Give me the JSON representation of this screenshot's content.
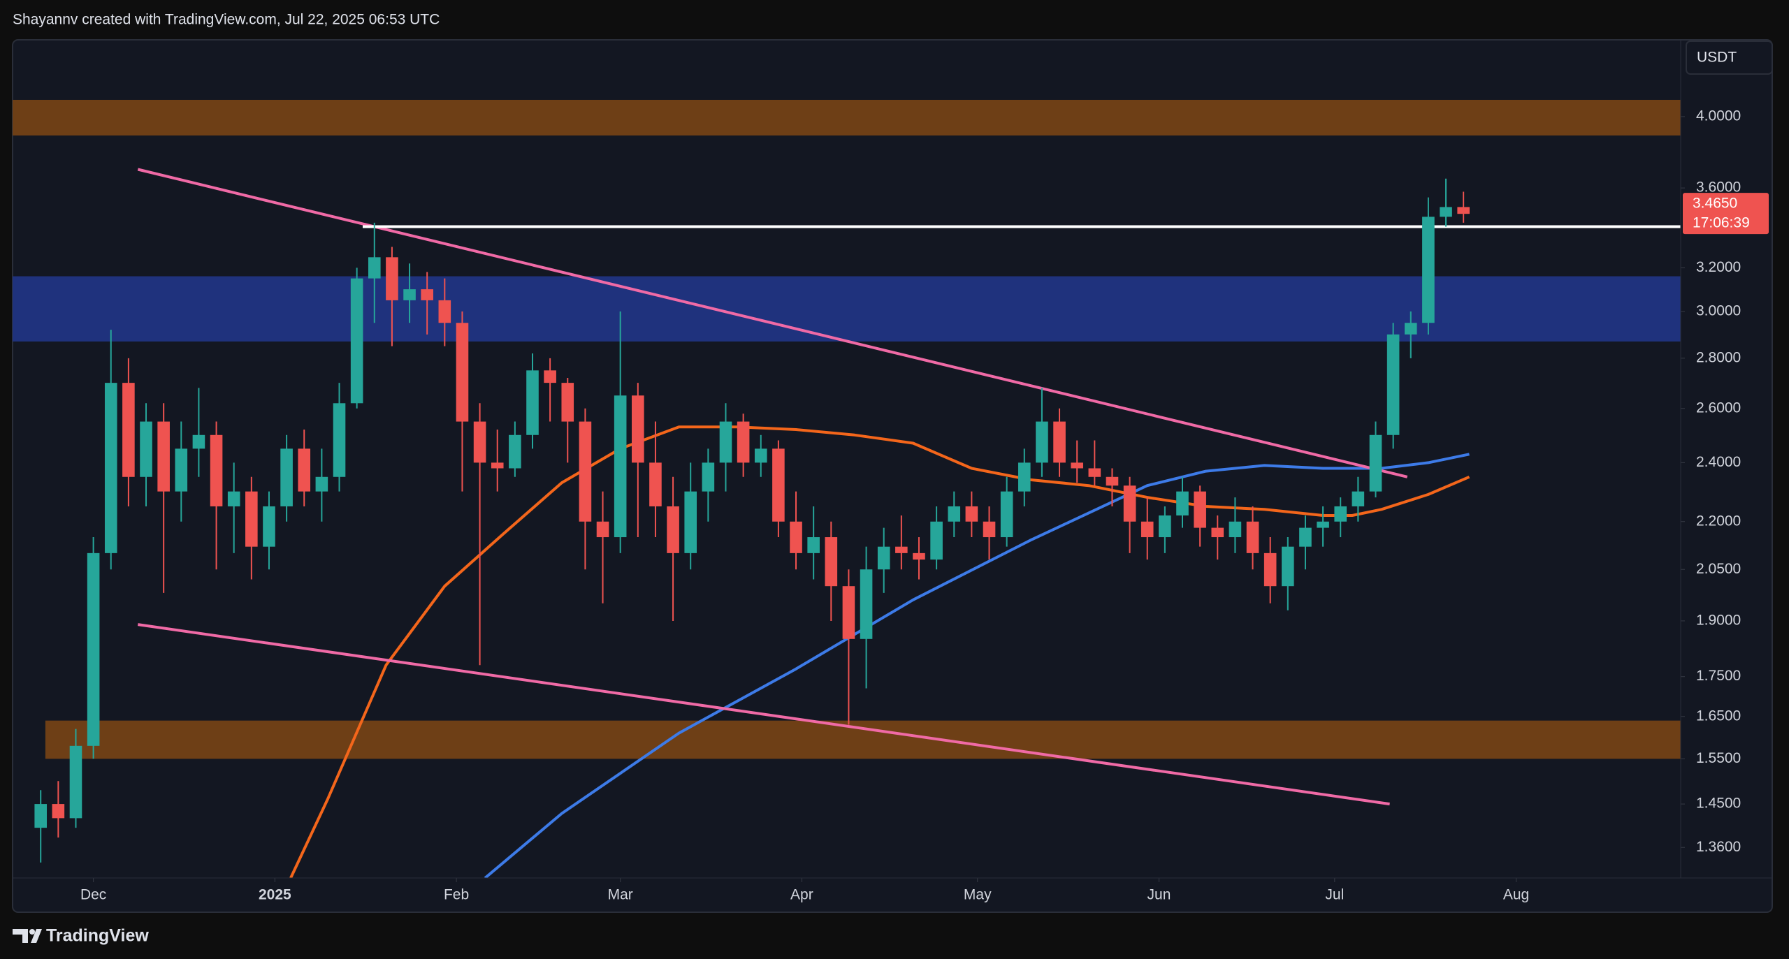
{
  "header": "Shayannv created with TradingView.com, Jul 22, 2025 06:53 UTC",
  "currency": "USDT",
  "brand": "TradingView",
  "chart_data": {
    "type": "candlestick",
    "log_scale": true,
    "up_color": "#26a69a",
    "down_color": "#ef5350",
    "xlim": [
      -13.8,
      271.1
    ],
    "ylim": [
      1.3,
      4.48
    ],
    "xticks": [
      {
        "value": 0,
        "label": "Dec"
      },
      {
        "value": 31,
        "label": "2025",
        "bold": true
      },
      {
        "value": 62,
        "label": "Feb"
      },
      {
        "value": 90,
        "label": "Mar"
      },
      {
        "value": 121,
        "label": "Apr"
      },
      {
        "value": 151,
        "label": "May"
      },
      {
        "value": 182,
        "label": "Jun"
      },
      {
        "value": 212,
        "label": "Jul"
      },
      {
        "value": 243,
        "label": "Aug"
      }
    ],
    "yticks": [
      {
        "value": 4.0,
        "label": "4.0000"
      },
      {
        "value": 3.6,
        "label": "3.6000"
      },
      {
        "value": 3.2,
        "label": "3.2000"
      },
      {
        "value": 3.0,
        "label": "3.0000"
      },
      {
        "value": 2.8,
        "label": "2.8000"
      },
      {
        "value": 2.6,
        "label": "2.6000"
      },
      {
        "value": 2.4,
        "label": "2.4000"
      },
      {
        "value": 2.2,
        "label": "2.2000"
      },
      {
        "value": 2.05,
        "label": "2.0500"
      },
      {
        "value": 1.9,
        "label": "1.9000"
      },
      {
        "value": 1.75,
        "label": "1.7500"
      },
      {
        "value": 1.65,
        "label": "1.6500"
      },
      {
        "value": 1.55,
        "label": "1.5500"
      },
      {
        "value": 1.45,
        "label": "1.4500"
      },
      {
        "value": 1.36,
        "label": "1.3600"
      }
    ],
    "x": [
      -9,
      -6,
      -3,
      0,
      3,
      6,
      9,
      12,
      15,
      18,
      21,
      24,
      27,
      30,
      33,
      36,
      39,
      42,
      45,
      48,
      51,
      54,
      57,
      60,
      63,
      66,
      69,
      72,
      75,
      78,
      81,
      84,
      87,
      90,
      93,
      96,
      99,
      102,
      105,
      108,
      111,
      114,
      117,
      120,
      123,
      126,
      129,
      132,
      135,
      138,
      141,
      144,
      147,
      150,
      153,
      156,
      159,
      162,
      165,
      168,
      171,
      174,
      177,
      180,
      183,
      186,
      189,
      192,
      195,
      198,
      201,
      204,
      207,
      210,
      213,
      216,
      219,
      222,
      225,
      228,
      231,
      234
    ],
    "open": [
      1.4,
      1.45,
      1.42,
      1.58,
      2.1,
      2.7,
      2.35,
      2.55,
      2.3,
      2.45,
      2.5,
      2.25,
      2.3,
      2.12,
      2.25,
      2.45,
      2.3,
      2.35,
      2.62,
      3.15,
      3.25,
      3.05,
      3.1,
      3.05,
      2.95,
      2.55,
      2.4,
      2.38,
      2.5,
      2.75,
      2.7,
      2.55,
      2.2,
      2.15,
      2.65,
      2.4,
      2.25,
      2.1,
      2.3,
      2.4,
      2.55,
      2.4,
      2.45,
      2.2,
      2.1,
      2.15,
      2.0,
      1.85,
      2.05,
      2.12,
      2.1,
      2.08,
      2.2,
      2.25,
      2.2,
      2.15,
      2.3,
      2.4,
      2.55,
      2.4,
      2.38,
      2.35,
      2.32,
      2.2,
      2.15,
      2.22,
      2.3,
      2.18,
      2.15,
      2.2,
      2.1,
      2.0,
      2.12,
      2.18,
      2.2,
      2.25,
      2.3,
      2.5,
      2.9,
      2.95,
      3.45,
      3.5
    ],
    "high": [
      1.48,
      1.5,
      1.62,
      2.15,
      2.92,
      2.8,
      2.62,
      2.62,
      2.55,
      2.68,
      2.55,
      2.4,
      2.35,
      2.3,
      2.5,
      2.52,
      2.45,
      2.7,
      3.2,
      3.42,
      3.3,
      3.22,
      3.18,
      3.15,
      3.0,
      2.62,
      2.52,
      2.55,
      2.82,
      2.8,
      2.72,
      2.6,
      2.3,
      3.0,
      2.7,
      2.55,
      2.35,
      2.4,
      2.45,
      2.62,
      2.58,
      2.5,
      2.48,
      2.3,
      2.25,
      2.2,
      2.05,
      2.12,
      2.18,
      2.22,
      2.15,
      2.25,
      2.3,
      2.3,
      2.25,
      2.35,
      2.45,
      2.68,
      2.6,
      2.48,
      2.48,
      2.38,
      2.35,
      2.28,
      2.25,
      2.35,
      2.32,
      2.22,
      2.28,
      2.25,
      2.15,
      2.15,
      2.22,
      2.25,
      2.28,
      2.35,
      2.55,
      2.95,
      3.0,
      3.55,
      3.65,
      3.58
    ],
    "low": [
      1.33,
      1.38,
      1.4,
      1.55,
      2.05,
      2.25,
      2.25,
      1.98,
      2.2,
      2.35,
      2.05,
      2.1,
      2.02,
      2.05,
      2.2,
      2.25,
      2.2,
      2.3,
      2.6,
      2.95,
      2.85,
      2.95,
      2.9,
      2.85,
      2.3,
      1.78,
      2.3,
      2.35,
      2.45,
      2.55,
      2.4,
      2.05,
      1.95,
      2.1,
      2.15,
      2.15,
      1.9,
      2.05,
      2.2,
      2.3,
      2.35,
      2.35,
      2.15,
      2.05,
      2.02,
      1.9,
      1.63,
      1.72,
      1.98,
      2.05,
      2.02,
      2.05,
      2.15,
      2.15,
      2.08,
      2.12,
      2.25,
      2.35,
      2.35,
      2.33,
      2.32,
      2.25,
      2.1,
      2.08,
      2.1,
      2.18,
      2.12,
      2.08,
      2.1,
      2.05,
      1.95,
      1.93,
      2.05,
      2.12,
      2.15,
      2.2,
      2.28,
      2.45,
      2.8,
      2.9,
      3.4,
      3.42
    ],
    "close": [
      1.45,
      1.42,
      1.58,
      2.1,
      2.7,
      2.35,
      2.55,
      2.3,
      2.45,
      2.5,
      2.25,
      2.3,
      2.12,
      2.25,
      2.45,
      2.3,
      2.35,
      2.62,
      3.15,
      3.25,
      3.05,
      3.1,
      3.05,
      2.95,
      2.55,
      2.4,
      2.38,
      2.5,
      2.75,
      2.7,
      2.55,
      2.2,
      2.15,
      2.65,
      2.4,
      2.25,
      2.1,
      2.3,
      2.4,
      2.55,
      2.4,
      2.45,
      2.2,
      2.1,
      2.15,
      2.0,
      1.85,
      2.05,
      2.12,
      2.1,
      2.08,
      2.2,
      2.25,
      2.2,
      2.15,
      2.3,
      2.4,
      2.55,
      2.4,
      2.38,
      2.35,
      2.32,
      2.2,
      2.15,
      2.22,
      2.3,
      2.18,
      2.15,
      2.2,
      2.1,
      2.0,
      2.12,
      2.18,
      2.2,
      2.25,
      2.3,
      2.5,
      2.9,
      2.95,
      3.45,
      3.5,
      3.465
    ],
    "last_price": {
      "value": 3.465,
      "label": "3.4650"
    },
    "countdown": "17:06:39",
    "moving_averages": [
      {
        "color": "#f4661b",
        "x": [
          33.7,
          40,
          50,
          60,
          70,
          80,
          90,
          100,
          110,
          120,
          130,
          140,
          150,
          160,
          170,
          180,
          190,
          200,
          210,
          215,
          220,
          228,
          235
        ],
        "values": [
          1.3,
          1.46,
          1.78,
          2.0,
          2.16,
          2.33,
          2.45,
          2.53,
          2.53,
          2.52,
          2.5,
          2.47,
          2.38,
          2.34,
          2.32,
          2.28,
          2.25,
          2.24,
          2.22,
          2.22,
          2.24,
          2.29,
          2.35
        ]
      },
      {
        "color": "#3d7be8",
        "x": [
          66.9,
          80,
          100,
          120,
          140,
          160,
          180,
          190,
          200,
          210,
          220,
          228,
          235
        ],
        "values": [
          1.3,
          1.43,
          1.61,
          1.77,
          1.96,
          2.14,
          2.32,
          2.37,
          2.39,
          2.38,
          2.38,
          2.4,
          2.43
        ]
      }
    ],
    "zones": [
      {
        "color": "#6e3f16",
        "low": 3.89,
        "high": 4.1,
        "start": -13.8
      },
      {
        "color": "#1f327d",
        "low": 2.87,
        "high": 3.16,
        "start": -13.8
      },
      {
        "color": "#6e3f16",
        "low": 1.55,
        "high": 1.64,
        "start": -8.2
      }
    ],
    "trendlines": [
      {
        "color": "#f06aa6",
        "x": [
          7.6,
          224.4
        ],
        "values": [
          3.7,
          2.35
        ]
      },
      {
        "color": "#f06aa6",
        "x": [
          7.6,
          221.4
        ],
        "values": [
          1.89,
          1.45
        ]
      },
      {
        "color": "#ffffff",
        "x": [
          46,
          271.1
        ],
        "values": [
          3.4,
          3.4
        ]
      }
    ]
  }
}
